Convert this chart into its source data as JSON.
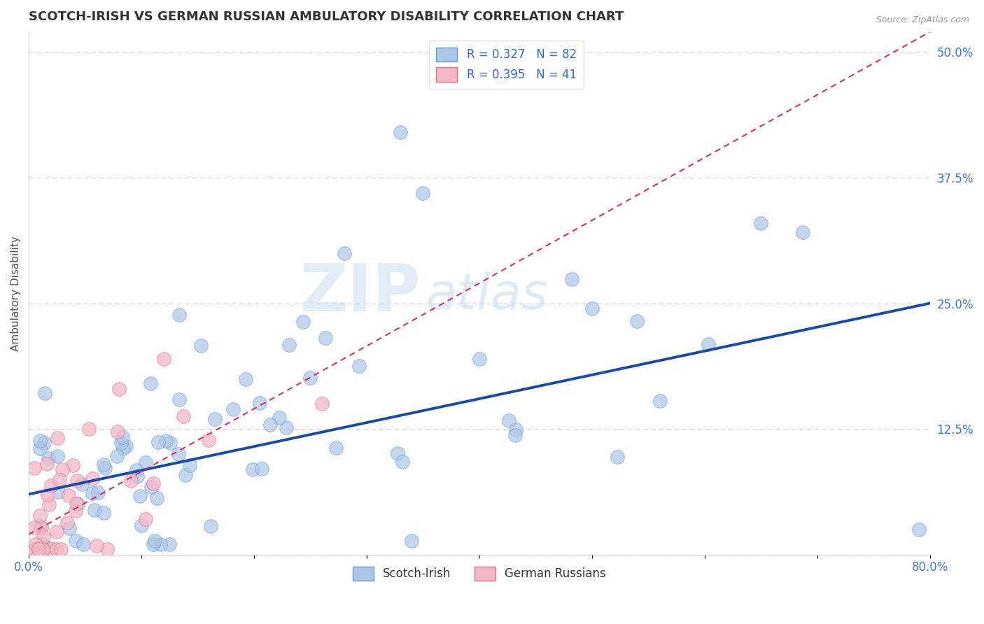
{
  "title": "SCOTCH-IRISH VS GERMAN RUSSIAN AMBULATORY DISABILITY CORRELATION CHART",
  "source": "Source: ZipAtlas.com",
  "ylabel": "Ambulatory Disability",
  "xlim": [
    0.0,
    0.8
  ],
  "ylim": [
    0.0,
    0.52
  ],
  "ytick_positions": [
    0.0,
    0.125,
    0.25,
    0.375,
    0.5
  ],
  "ytick_labels": [
    "",
    "12.5%",
    "25.0%",
    "37.5%",
    "50.0%"
  ],
  "grid_color": "#cccccc",
  "background_color": "#ffffff",
  "scotch_irish_color": "#adc6e8",
  "scotch_irish_edge": "#6699cc",
  "german_russian_color": "#f2b8c6",
  "german_russian_edge": "#e07090",
  "trend_scotch_irish_color": "#1a4aa8",
  "trend_german_russian_color": "#cc3366",
  "R_scotch_irish": 0.327,
  "N_scotch_irish": 82,
  "R_german_russian": 0.395,
  "N_german_russian": 41,
  "trend_si_x0": 0.0,
  "trend_si_y0": 0.06,
  "trend_si_x1": 0.8,
  "trend_si_y1": 0.25,
  "trend_gr_x0": 0.0,
  "trend_gr_y0": 0.02,
  "trend_gr_x1": 0.8,
  "trend_gr_y1": 0.52,
  "watermark_zip": "ZIP",
  "watermark_atlas": "atlas",
  "watermark_color_zip": "#c8dff0",
  "watermark_color_atlas": "#b0cce0"
}
